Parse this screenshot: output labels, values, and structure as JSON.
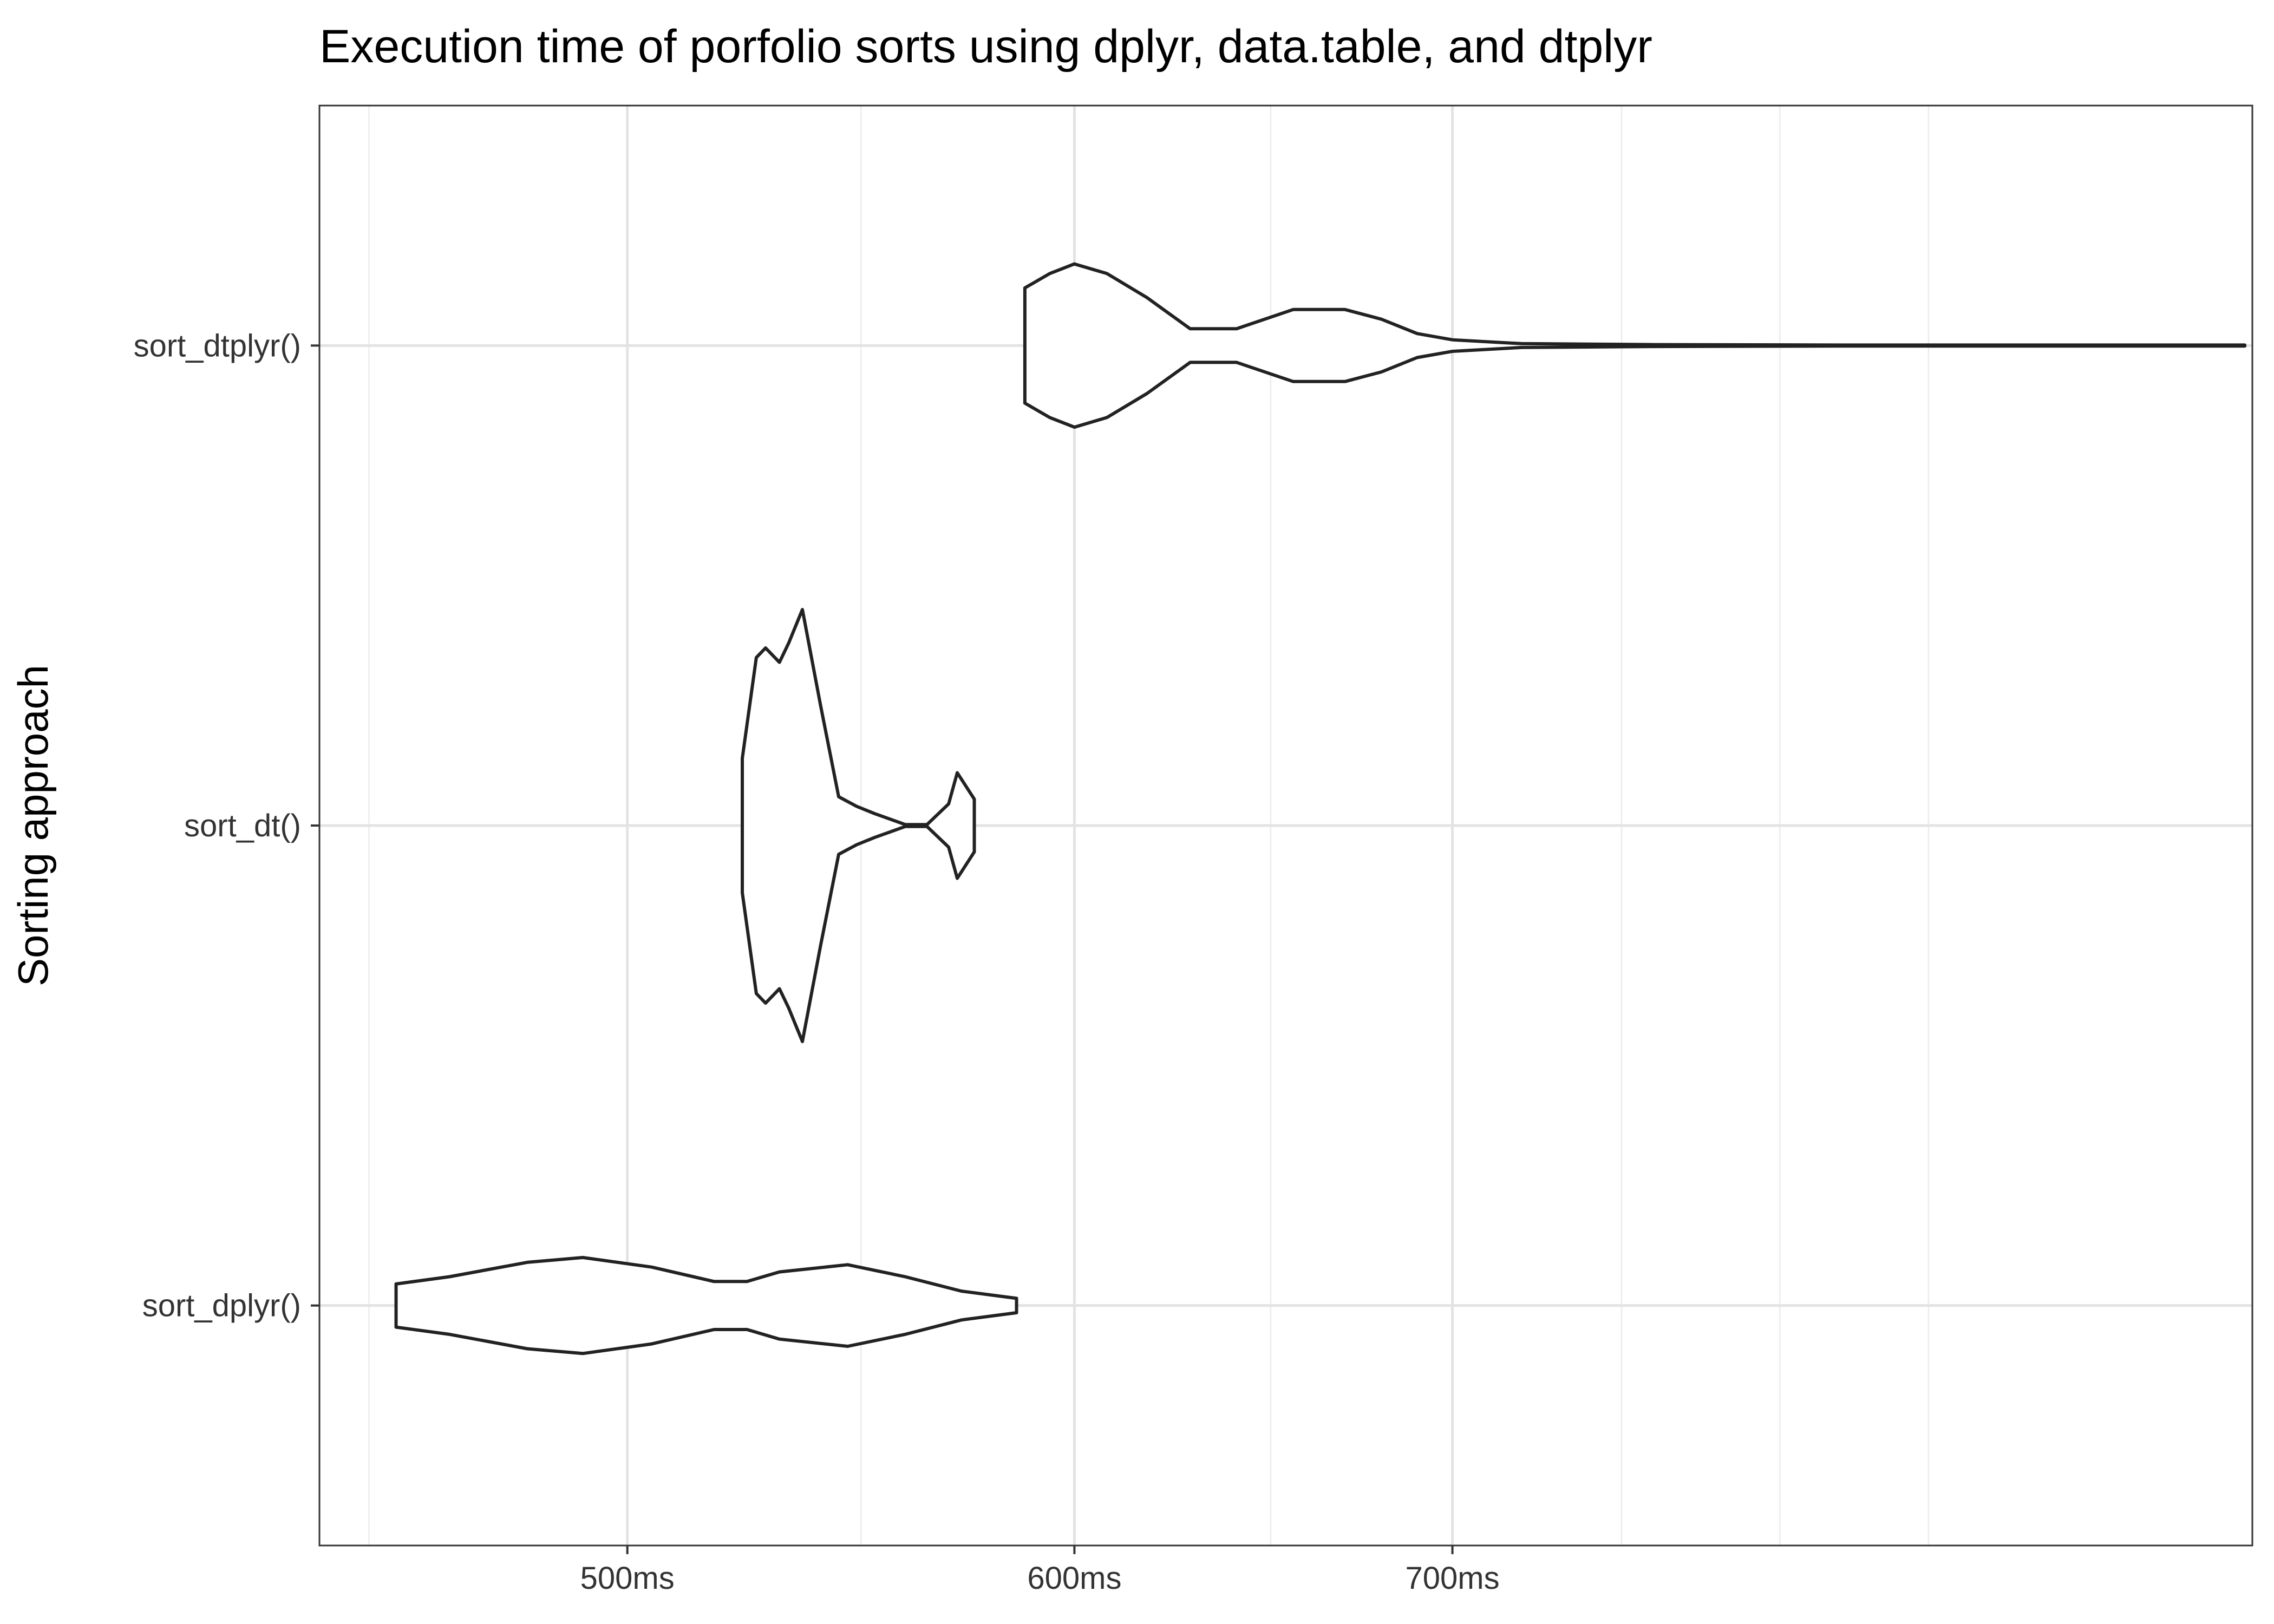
{
  "chart_data": {
    "type": "violin",
    "orientation": "horizontal",
    "title": "Execution time of porfolio sorts using dplyr, data.table, and dtplyr",
    "xlabel": "",
    "ylabel": "Sorting approach",
    "x_scale": "log10",
    "x_unit": "ms",
    "xlim": [
      441,
      970
    ],
    "x_ticks": [
      {
        "value": 500,
        "label": "500ms"
      },
      {
        "value": 600,
        "label": "600ms"
      },
      {
        "value": 700,
        "label": "700ms"
      }
    ],
    "x_minor_gridlines": [
      450,
      550,
      650,
      750,
      800,
      850
    ],
    "grid": true,
    "categories": [
      "sort_dtplyr()",
      "sort_dt()",
      "sort_dplyr()"
    ],
    "max_half_width_category_units": 0.45,
    "series": [
      {
        "category": "sort_dtplyr()",
        "density_profile": [
          [
            588,
            0.12
          ],
          [
            594,
            0.15
          ],
          [
            600,
            0.17
          ],
          [
            608,
            0.15
          ],
          [
            618,
            0.1
          ],
          [
            629,
            0.035
          ],
          [
            641,
            0.035
          ],
          [
            656,
            0.075
          ],
          [
            670,
            0.075
          ],
          [
            680,
            0.055
          ],
          [
            690,
            0.025
          ],
          [
            700,
            0.012
          ],
          [
            720,
            0.004
          ],
          [
            760,
            0.002
          ],
          [
            820,
            0.001
          ],
          [
            880,
            0.001
          ],
          [
            930,
            0.001
          ],
          [
            967,
            0.001
          ]
        ]
      },
      {
        "category": "sort_dt()",
        "density_profile": [
          [
            524,
            0.14
          ],
          [
            527,
            0.35
          ],
          [
            529,
            0.37
          ],
          [
            532,
            0.34
          ],
          [
            534,
            0.38
          ],
          [
            537,
            0.45
          ],
          [
            541,
            0.25
          ],
          [
            545,
            0.06
          ],
          [
            549,
            0.04
          ],
          [
            553,
            0.025
          ],
          [
            560,
            0.002
          ],
          [
            565,
            0.002
          ],
          [
            570,
            0.045
          ],
          [
            572,
            0.11
          ],
          [
            576,
            0.055
          ],
          [
            576,
            0.0
          ]
        ]
      },
      {
        "category": "sort_dplyr()",
        "density_profile": [
          [
            455,
            0.045
          ],
          [
            465,
            0.06
          ],
          [
            480,
            0.09
          ],
          [
            491,
            0.1
          ],
          [
            505,
            0.08
          ],
          [
            518,
            0.05
          ],
          [
            525,
            0.05
          ],
          [
            532,
            0.07
          ],
          [
            547,
            0.085
          ],
          [
            560,
            0.06
          ],
          [
            573,
            0.03
          ],
          [
            586,
            0.015
          ],
          [
            586,
            0.0
          ]
        ]
      }
    ]
  }
}
